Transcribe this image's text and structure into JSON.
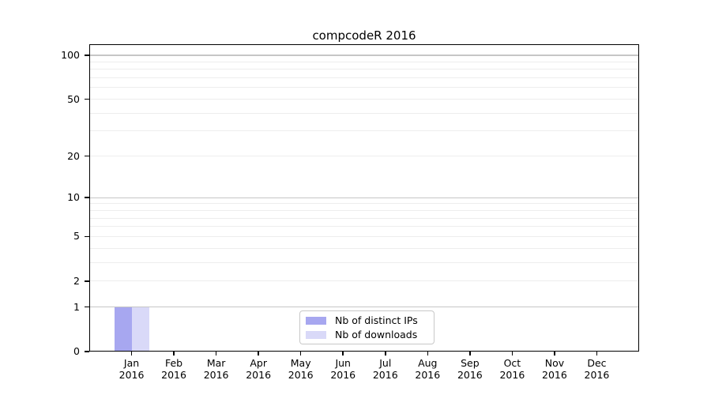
{
  "title": "compcodeR 2016",
  "colors": {
    "background": "#ffffff",
    "bar_distinct_ips": "#a7a7f0",
    "bar_downloads": "#d9d9f8",
    "grid_minor": "#ededed",
    "grid_major": "#c6c6c6",
    "axis": "#000000",
    "legend_border": "#c8c8c8",
    "text": "#000000"
  },
  "chart_data": {
    "type": "bar",
    "title": "compcodeR 2016",
    "categories": [
      "Jan",
      "Feb",
      "Mar",
      "Apr",
      "May",
      "Jun",
      "Jul",
      "Aug",
      "Sep",
      "Oct",
      "Nov",
      "Dec"
    ],
    "x_year_label": "2016",
    "series": [
      {
        "name": "Nb of distinct IPs",
        "color": "#a7a7f0",
        "values": [
          1,
          0,
          0,
          0,
          0,
          0,
          0,
          0,
          0,
          0,
          0,
          0
        ]
      },
      {
        "name": "Nb of downloads",
        "color": "#d9d9f8",
        "values": [
          1,
          0,
          0,
          0,
          0,
          0,
          0,
          0,
          0,
          0,
          0,
          0
        ]
      }
    ],
    "xlabel": "",
    "ylabel": "",
    "y_scale": "log10(1+y)",
    "y_ticks": [
      100,
      50,
      20,
      10,
      5,
      2,
      1,
      0
    ],
    "y_minor_gridlines": [
      2,
      3,
      4,
      5,
      6,
      7,
      8,
      9,
      20,
      30,
      40,
      50,
      60,
      70,
      80,
      90
    ],
    "y_major_gridlines": [
      1,
      10,
      100
    ],
    "ylim": [
      0,
      119
    ],
    "grid": true,
    "legend_position": "lower center"
  }
}
